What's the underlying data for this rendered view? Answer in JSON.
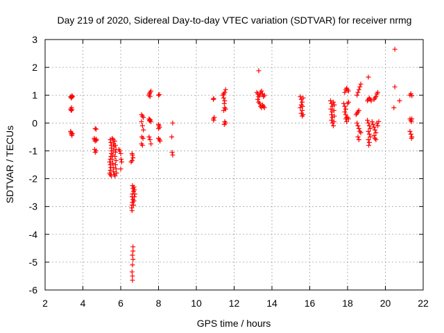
{
  "chart_data": {
    "type": "scatter",
    "title": "Day 219 of 2020, Sidereal Day-to-day VTEC variation (SDTVAR) for receiver nrmg",
    "xlabel": "GPS time / hours",
    "ylabel": "SDTVAR / TECUs",
    "xlim": [
      2,
      22
    ],
    "ylim": [
      -6,
      3
    ],
    "xticks": [
      "2",
      "4",
      "6",
      "8",
      "10",
      "12",
      "14",
      "16",
      "18",
      "20",
      "22"
    ],
    "yticks": [
      "-6",
      "-5",
      "-4",
      "-3",
      "-2",
      "-1",
      "0",
      "1",
      "2",
      "3"
    ],
    "grid": true,
    "marker": "+",
    "color": "#ff0000",
    "series": [
      {
        "name": "SDTVAR",
        "points": [
          [
            3.35,
            0.95
          ],
          [
            3.38,
            0.9
          ],
          [
            3.4,
            0.92
          ],
          [
            3.42,
            0.98
          ],
          [
            3.45,
            0.95
          ],
          [
            3.35,
            0.5
          ],
          [
            3.38,
            0.45
          ],
          [
            3.4,
            0.55
          ],
          [
            3.42,
            0.48
          ],
          [
            3.35,
            -0.3
          ],
          [
            3.38,
            -0.35
          ],
          [
            3.4,
            -0.4
          ],
          [
            3.42,
            -0.45
          ],
          [
            3.44,
            -0.38
          ],
          [
            4.65,
            -0.2
          ],
          [
            4.7,
            -0.22
          ],
          [
            4.6,
            -0.55
          ],
          [
            4.62,
            -0.6
          ],
          [
            4.65,
            -0.65
          ],
          [
            4.7,
            -0.58
          ],
          [
            4.72,
            -0.62
          ],
          [
            4.62,
            -0.95
          ],
          [
            4.65,
            -1.05
          ],
          [
            4.7,
            -1.0
          ],
          [
            5.45,
            -0.6
          ],
          [
            5.48,
            -0.7
          ],
          [
            5.5,
            -0.8
          ],
          [
            5.5,
            -0.9
          ],
          [
            5.52,
            -1.0
          ],
          [
            5.5,
            -1.1
          ],
          [
            5.48,
            -1.2
          ],
          [
            5.45,
            -1.3
          ],
          [
            5.42,
            -1.4
          ],
          [
            5.45,
            -1.5
          ],
          [
            5.48,
            -1.6
          ],
          [
            5.45,
            -1.7
          ],
          [
            5.42,
            -1.8
          ],
          [
            5.45,
            -1.85
          ],
          [
            5.5,
            -1.9
          ],
          [
            5.55,
            -0.55
          ],
          [
            5.6,
            -0.6
          ],
          [
            5.62,
            -0.75
          ],
          [
            5.65,
            -0.85
          ],
          [
            5.6,
            -1.0
          ],
          [
            5.58,
            -1.15
          ],
          [
            5.55,
            -1.3
          ],
          [
            5.58,
            -1.45
          ],
          [
            5.6,
            -1.6
          ],
          [
            5.62,
            -1.75
          ],
          [
            5.65,
            -1.85
          ],
          [
            5.7,
            -1.9
          ],
          [
            5.68,
            -0.65
          ],
          [
            5.72,
            -0.8
          ],
          [
            5.75,
            -0.95
          ],
          [
            5.72,
            -1.05
          ],
          [
            5.7,
            -1.2
          ],
          [
            5.75,
            -1.35
          ],
          [
            5.72,
            -1.5
          ],
          [
            5.75,
            -1.65
          ],
          [
            5.78,
            -1.8
          ],
          [
            5.9,
            -0.95
          ],
          [
            5.95,
            -1.0
          ],
          [
            6.0,
            -1.1
          ],
          [
            6.02,
            -1.3
          ],
          [
            6.05,
            -1.4
          ],
          [
            6.0,
            -1.65
          ],
          [
            6.6,
            -1.1
          ],
          [
            6.62,
            -1.15
          ],
          [
            6.65,
            -1.25
          ],
          [
            6.6,
            -1.35
          ],
          [
            6.55,
            -1.4
          ],
          [
            6.62,
            -2.25
          ],
          [
            6.65,
            -2.35
          ],
          [
            6.68,
            -2.45
          ],
          [
            6.62,
            -2.55
          ],
          [
            6.6,
            -2.65
          ],
          [
            6.65,
            -2.75
          ],
          [
            6.62,
            -2.85
          ],
          [
            6.6,
            -2.95
          ],
          [
            6.58,
            -3.05
          ],
          [
            6.6,
            -3.15
          ],
          [
            6.7,
            -2.3
          ],
          [
            6.72,
            -2.4
          ],
          [
            6.75,
            -2.55
          ],
          [
            6.72,
            -2.65
          ],
          [
            6.7,
            -2.8
          ],
          [
            6.68,
            -2.95
          ],
          [
            6.65,
            -4.45
          ],
          [
            6.65,
            -4.6
          ],
          [
            6.62,
            -4.75
          ],
          [
            6.65,
            -4.9
          ],
          [
            6.62,
            -5.1
          ],
          [
            6.6,
            -5.35
          ],
          [
            6.62,
            -5.5
          ],
          [
            6.62,
            -5.65
          ],
          [
            7.1,
            0.3
          ],
          [
            7.15,
            0.25
          ],
          [
            7.2,
            0.2
          ],
          [
            7.1,
            0.05
          ],
          [
            7.15,
            -0.1
          ],
          [
            7.2,
            -0.25
          ],
          [
            7.12,
            -0.5
          ],
          [
            7.18,
            -0.55
          ],
          [
            7.1,
            -0.75
          ],
          [
            7.15,
            -0.8
          ],
          [
            7.5,
            1.0
          ],
          [
            7.55,
            1.1
          ],
          [
            7.6,
            1.15
          ],
          [
            7.52,
            1.05
          ],
          [
            7.55,
            0.95
          ],
          [
            7.5,
            0.15
          ],
          [
            7.55,
            0.1
          ],
          [
            7.6,
            0.05
          ],
          [
            7.52,
            0.08
          ],
          [
            7.55,
            0.12
          ],
          [
            7.5,
            -0.5
          ],
          [
            7.55,
            -0.6
          ],
          [
            7.6,
            -0.75
          ],
          [
            8.0,
            1.0
          ],
          [
            8.05,
            1.02
          ],
          [
            8.0,
            -0.05
          ],
          [
            8.02,
            -0.1
          ],
          [
            8.05,
            -0.15
          ],
          [
            8.0,
            -0.2
          ],
          [
            8.0,
            -0.55
          ],
          [
            8.05,
            -0.6
          ],
          [
            8.08,
            -0.65
          ],
          [
            8.75,
            0.0
          ],
          [
            8.7,
            -0.5
          ],
          [
            8.72,
            -1.05
          ],
          [
            8.75,
            -1.15
          ],
          [
            10.9,
            0.85
          ],
          [
            10.92,
            0.88
          ],
          [
            10.9,
            0.15
          ],
          [
            10.95,
            0.2
          ],
          [
            10.92,
            0.1
          ],
          [
            11.4,
            1.0
          ],
          [
            11.45,
            1.05
          ],
          [
            11.5,
            1.1
          ],
          [
            11.55,
            1.2
          ],
          [
            11.45,
            0.9
          ],
          [
            11.5,
            0.8
          ],
          [
            11.48,
            0.7
          ],
          [
            11.5,
            0.55
          ],
          [
            11.45,
            0.45
          ],
          [
            11.55,
            0.5
          ],
          [
            11.5,
            0.05
          ],
          [
            11.55,
            0.0
          ],
          [
            11.48,
            -0.05
          ],
          [
            13.3,
            1.88
          ],
          [
            13.2,
            1.1
          ],
          [
            13.25,
            1.05
          ],
          [
            13.3,
            0.95
          ],
          [
            13.35,
            1.0
          ],
          [
            13.4,
            1.1
          ],
          [
            13.45,
            1.15
          ],
          [
            13.5,
            1.05
          ],
          [
            13.55,
            0.95
          ],
          [
            13.6,
            1.0
          ],
          [
            13.25,
            0.85
          ],
          [
            13.3,
            0.75
          ],
          [
            13.35,
            0.7
          ],
          [
            13.4,
            0.6
          ],
          [
            13.45,
            0.55
          ],
          [
            13.5,
            0.65
          ],
          [
            13.55,
            0.6
          ],
          [
            13.6,
            0.55
          ],
          [
            15.5,
            0.95
          ],
          [
            15.55,
            0.85
          ],
          [
            15.6,
            0.75
          ],
          [
            15.55,
            0.65
          ],
          [
            15.5,
            0.55
          ],
          [
            15.6,
            0.45
          ],
          [
            15.55,
            0.35
          ],
          [
            15.6,
            0.25
          ],
          [
            15.65,
            0.3
          ],
          [
            15.62,
            0.6
          ],
          [
            15.65,
            0.9
          ],
          [
            17.1,
            0.8
          ],
          [
            17.15,
            0.7
          ],
          [
            17.2,
            0.6
          ],
          [
            17.12,
            0.5
          ],
          [
            17.18,
            0.4
          ],
          [
            17.15,
            0.3
          ],
          [
            17.2,
            0.2
          ],
          [
            17.15,
            0.1
          ],
          [
            17.2,
            0.0
          ],
          [
            17.25,
            -0.1
          ],
          [
            17.25,
            0.75
          ],
          [
            17.3,
            0.65
          ],
          [
            17.28,
            0.45
          ],
          [
            17.3,
            0.25
          ],
          [
            17.28,
            0.05
          ],
          [
            17.8,
            0.7
          ],
          [
            17.85,
            0.6
          ],
          [
            17.9,
            0.5
          ],
          [
            17.85,
            0.4
          ],
          [
            17.9,
            0.3
          ],
          [
            17.95,
            0.2
          ],
          [
            17.9,
            0.15
          ],
          [
            17.95,
            0.05
          ],
          [
            17.85,
            1.1
          ],
          [
            17.9,
            1.2
          ],
          [
            17.95,
            1.25
          ],
          [
            18.0,
            1.2
          ],
          [
            18.05,
            1.15
          ],
          [
            18.0,
            0.7
          ],
          [
            18.05,
            0.75
          ],
          [
            18.0,
            0.2
          ],
          [
            18.05,
            0.15
          ],
          [
            18.45,
            0.3
          ],
          [
            18.5,
            0.35
          ],
          [
            18.55,
            0.4
          ],
          [
            18.6,
            0.45
          ],
          [
            18.5,
            1.0
          ],
          [
            18.55,
            1.1
          ],
          [
            18.6,
            1.2
          ],
          [
            18.65,
            1.3
          ],
          [
            18.7,
            1.4
          ],
          [
            18.5,
            0.0
          ],
          [
            18.55,
            -0.1
          ],
          [
            18.6,
            -0.2
          ],
          [
            18.65,
            -0.3
          ],
          [
            18.7,
            -0.35
          ],
          [
            18.55,
            -0.5
          ],
          [
            18.6,
            -0.6
          ],
          [
            19.1,
            1.65
          ],
          [
            19.05,
            0.8
          ],
          [
            19.1,
            0.85
          ],
          [
            19.15,
            0.9
          ],
          [
            19.2,
            0.85
          ],
          [
            19.25,
            0.8
          ],
          [
            19.05,
            0.1
          ],
          [
            19.1,
            0.0
          ],
          [
            19.15,
            -0.1
          ],
          [
            19.2,
            -0.2
          ],
          [
            19.1,
            -0.3
          ],
          [
            19.15,
            -0.4
          ],
          [
            19.2,
            -0.5
          ],
          [
            19.1,
            -0.6
          ],
          [
            19.15,
            -0.7
          ],
          [
            19.12,
            -0.8
          ],
          [
            19.3,
            0.05
          ],
          [
            19.35,
            -0.05
          ],
          [
            19.4,
            -0.15
          ],
          [
            19.45,
            -0.25
          ],
          [
            19.5,
            -0.35
          ],
          [
            19.4,
            -0.45
          ],
          [
            19.45,
            -0.55
          ],
          [
            19.5,
            -0.6
          ],
          [
            19.4,
            0.85
          ],
          [
            19.45,
            0.9
          ],
          [
            19.5,
            0.95
          ],
          [
            19.55,
            1.05
          ],
          [
            19.6,
            1.1
          ],
          [
            19.55,
            0.0
          ],
          [
            19.6,
            -0.1
          ],
          [
            19.65,
            0.05
          ],
          [
            20.5,
            2.65
          ],
          [
            20.5,
            1.3
          ],
          [
            20.45,
            0.55
          ],
          [
            20.75,
            0.8
          ],
          [
            21.3,
            1.0
          ],
          [
            21.35,
            1.05
          ],
          [
            21.4,
            0.98
          ],
          [
            21.3,
            0.15
          ],
          [
            21.35,
            0.1
          ],
          [
            21.38,
            0.05
          ],
          [
            21.4,
            0.15
          ],
          [
            21.3,
            -0.3
          ],
          [
            21.35,
            -0.4
          ],
          [
            21.4,
            -0.5
          ],
          [
            21.38,
            -0.55
          ]
        ]
      }
    ]
  }
}
